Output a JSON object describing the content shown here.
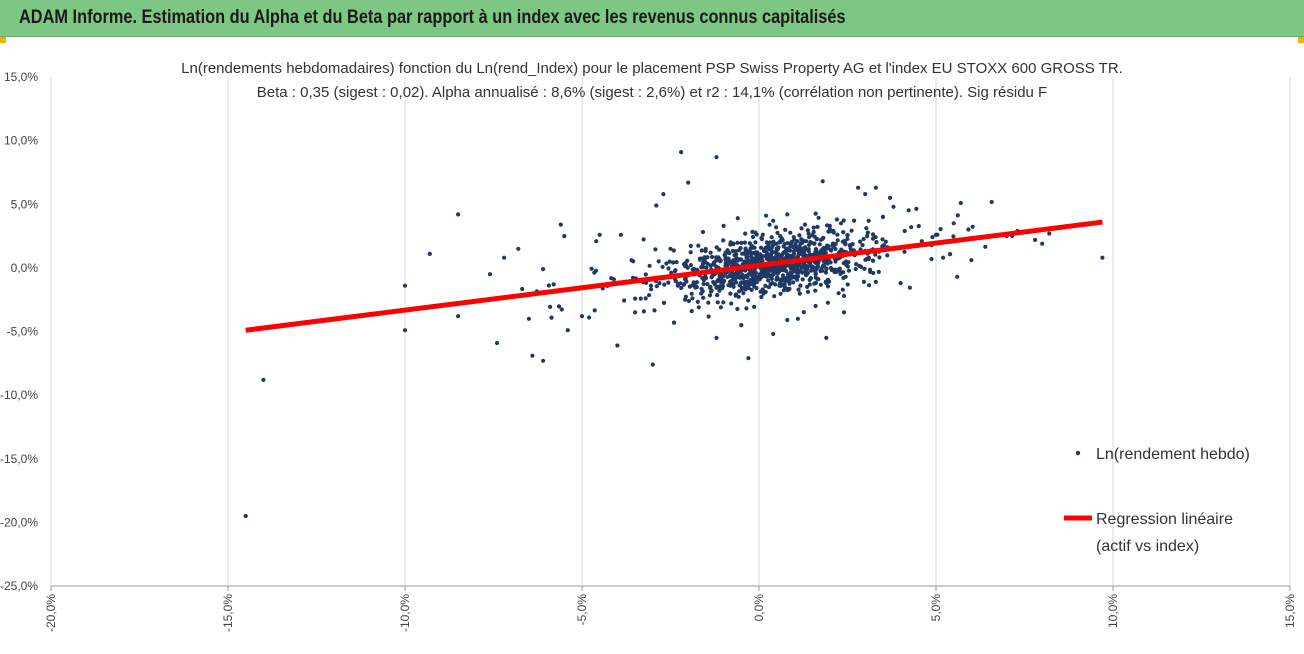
{
  "header": {
    "title": "ADAM Informe. Estimation du Alpha et du Beta par rapport à un index avec les revenus connus capitalisés"
  },
  "chart_data": {
    "type": "scatter",
    "title": "Ln(rendements hebdomadaires) fonction du Ln(rend_Index) pour le placement PSP Swiss Property AG et l'index EU STOXX 600 GROSS TR.",
    "subtitle": "Beta : 0,35 (sigest : 0,02). Alpha annualisé : 8,6% (sigest : 2,6%) et r2 : 14,1% (corrélation non pertinente). Sig résidu F",
    "xlabel": "",
    "ylabel": "",
    "xlim": [
      -0.2,
      0.15
    ],
    "ylim": [
      -0.25,
      0.15
    ],
    "x_ticks": [
      -0.2,
      -0.15,
      -0.1,
      -0.05,
      0.0,
      0.05,
      0.1,
      0.15
    ],
    "x_tick_labels": [
      "-20,0%",
      "-15,0%",
      "-10,0%",
      "-5,0%",
      "0,0%",
      "5,0%",
      "10,0%",
      "15,0%"
    ],
    "y_ticks": [
      0.15,
      0.1,
      0.05,
      0.0,
      -0.05,
      -0.1,
      -0.15,
      -0.2,
      -0.25
    ],
    "y_tick_labels": [
      "15,0%",
      "10,0%",
      "5,0%",
      "0,0%",
      "-5,0%",
      "-10,0%",
      "-15,0%",
      "-20,0%",
      "-25,0%"
    ],
    "grid": {
      "vertical": true,
      "horizontal": false
    },
    "legend_position": "right",
    "series": [
      {
        "name": "Ln(rendement hebdo)",
        "type": "scatter",
        "color": "#1f3864",
        "points": [
          [
            -0.145,
            -0.195
          ],
          [
            -0.14,
            -0.088
          ],
          [
            -0.1,
            -0.014
          ],
          [
            -0.1,
            -0.049
          ],
          [
            -0.093,
            0.011
          ],
          [
            -0.085,
            0.042
          ],
          [
            -0.085,
            -0.038
          ],
          [
            -0.076,
            -0.005
          ],
          [
            -0.074,
            -0.059
          ],
          [
            -0.072,
            0.008
          ],
          [
            -0.068,
            0.015
          ],
          [
            -0.065,
            -0.04
          ],
          [
            -0.064,
            -0.069
          ],
          [
            -0.061,
            -0.073
          ],
          [
            -0.061,
            -0.001
          ],
          [
            -0.058,
            -0.013
          ],
          [
            -0.056,
            0.034
          ],
          [
            -0.055,
            0.025
          ],
          [
            -0.054,
            -0.049
          ],
          [
            -0.05,
            -0.038
          ],
          [
            -0.048,
            -0.039
          ],
          [
            -0.046,
            0.021
          ],
          [
            -0.045,
            0.026
          ],
          [
            -0.041,
            -0.009
          ],
          [
            -0.04,
            -0.061
          ],
          [
            -0.039,
            0.026
          ],
          [
            -0.036,
            0.006
          ],
          [
            -0.035,
            -0.035
          ],
          [
            -0.032,
            -0.024
          ],
          [
            -0.03,
            -0.076
          ],
          [
            -0.029,
            0.049
          ],
          [
            -0.027,
            0.058
          ],
          [
            -0.025,
            0.015
          ],
          [
            -0.022,
            0.091
          ],
          [
            -0.02,
            0.067
          ],
          [
            -0.019,
            -0.034
          ],
          [
            -0.015,
            -0.008
          ],
          [
            -0.012,
            0.087
          ],
          [
            -0.012,
            -0.055
          ],
          [
            -0.008,
            0.02
          ],
          [
            -0.006,
            0.039
          ],
          [
            -0.005,
            -0.045
          ],
          [
            -0.002,
            -0.006
          ],
          [
            -0.003,
            -0.071
          ],
          [
            0.002,
            0.041
          ],
          [
            0.004,
            -0.052
          ],
          [
            0.006,
            0.025
          ],
          [
            0.008,
            0.042
          ],
          [
            0.012,
            0.011
          ],
          [
            0.016,
            -0.03
          ],
          [
            0.018,
            0.068
          ],
          [
            0.019,
            -0.055
          ],
          [
            0.02,
            0.033
          ],
          [
            0.024,
            -0.035
          ],
          [
            0.026,
            0.013
          ],
          [
            0.028,
            0.063
          ],
          [
            0.03,
            0.058
          ],
          [
            0.033,
            0.063
          ],
          [
            0.035,
            0.04
          ],
          [
            0.037,
            0.055
          ],
          [
            0.04,
            -0.012
          ],
          [
            0.043,
            0.032
          ],
          [
            0.046,
            0.021
          ],
          [
            0.05,
            0.026
          ],
          [
            0.052,
            0.008
          ],
          [
            0.055,
            0.035
          ],
          [
            0.056,
            -0.007
          ],
          [
            0.057,
            0.051
          ],
          [
            0.06,
            0.006
          ],
          [
            0.07,
            0.025
          ],
          [
            0.073,
            0.029
          ],
          [
            0.078,
            0.022
          ],
          [
            0.08,
            0.019
          ],
          [
            0.082,
            0.027
          ],
          [
            0.097,
            0.008
          ],
          [
            0.012,
            0.031
          ],
          [
            0.014,
            0.027
          ],
          [
            0.022,
            0.038
          ],
          [
            -0.01,
            0.033
          ],
          [
            0.021,
            0.029
          ],
          [
            0.031,
            0.037
          ],
          [
            0.038,
            0.048
          ],
          [
            0.004,
            0.037
          ],
          [
            0.013,
            0.034
          ],
          [
            0.008,
            -0.041
          ],
          [
            -0.017,
            -0.031
          ],
          [
            0.024,
            -0.022
          ],
          [
            0.033,
            -0.011
          ],
          [
            -0.024,
            -0.043
          ],
          [
            0.011,
            -0.04
          ]
        ]
      },
      {
        "name": "Regression linéaire (actif vs index)",
        "type": "line",
        "color": "#ff0000",
        "points": [
          [
            -0.145,
            -0.049
          ],
          [
            0.097,
            0.036
          ]
        ]
      }
    ],
    "legend": {
      "scatter_label": "Ln(rendement hebdo)",
      "line_label_1": "Regression linéaire",
      "line_label_2": "(actif vs index)"
    }
  }
}
